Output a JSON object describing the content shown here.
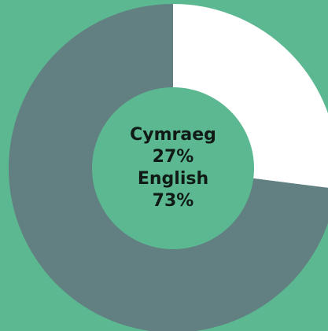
{
  "chart_data": {
    "type": "donut",
    "categories": [
      "Cymraeg",
      "English"
    ],
    "values": [
      27,
      73
    ],
    "value_labels": [
      "27%",
      "73%"
    ],
    "colors": [
      "#ffffff",
      "#627f82"
    ]
  }
}
